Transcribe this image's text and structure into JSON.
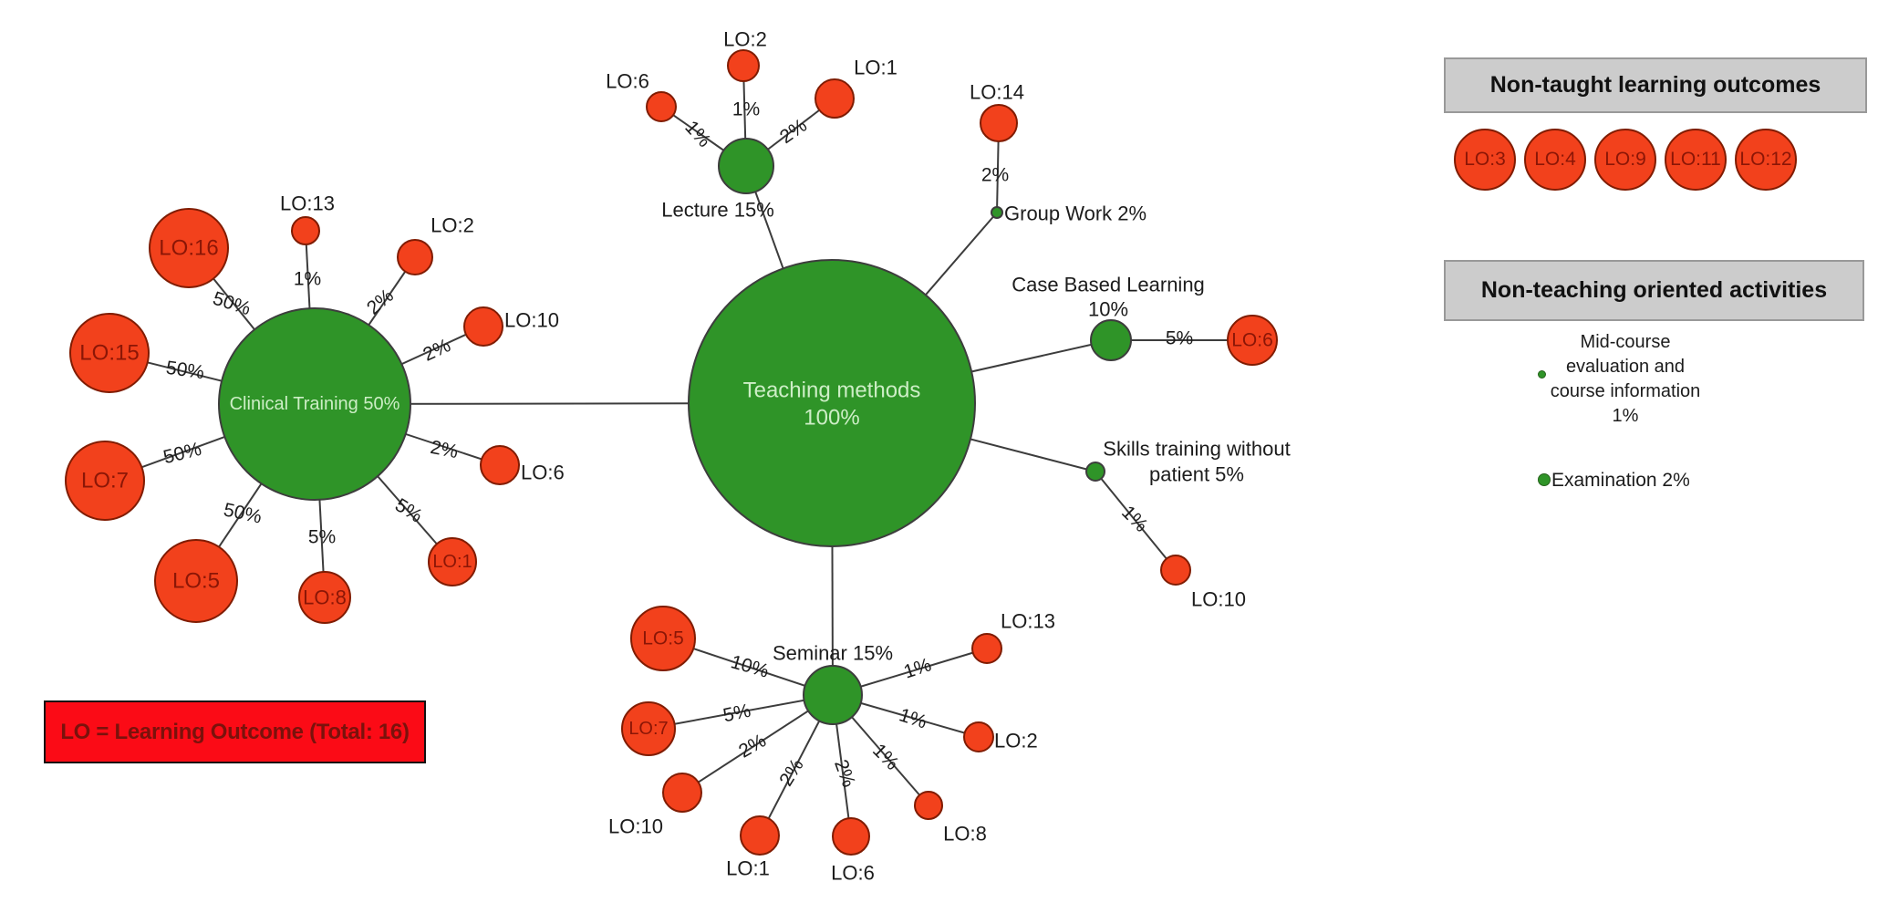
{
  "colors": {
    "green_fill": "#2f9428",
    "green_stroke": "#3d3d3d",
    "red_fill": "#f2411c",
    "red_stroke": "#801c02",
    "red_text": "#8b1606",
    "light_green_text": "#cdeec6",
    "black_text": "#1c1c1c",
    "line": "#3c3c3c",
    "gray_box_bg": "#cccccc",
    "note_box_bg": "#fb0b16",
    "note_box_text": "#7a120c"
  },
  "graph": {
    "nodes": [
      {
        "id": "teaching",
        "kind": "method",
        "lines": [
          "Teaching methods",
          "100%"
        ]
      },
      {
        "id": "clinical",
        "kind": "method",
        "lines": [
          "Clinical Training 50%"
        ]
      },
      {
        "id": "lecture",
        "kind": "method",
        "label": "Lecture 15%"
      },
      {
        "id": "seminar",
        "kind": "method",
        "label": "Seminar 15%"
      },
      {
        "id": "groupwork",
        "kind": "method",
        "label": "Group Work 2%"
      },
      {
        "id": "cbl",
        "kind": "method",
        "lines": [
          "Case Based Learning",
          "10%"
        ]
      },
      {
        "id": "skills",
        "kind": "method",
        "lines": [
          "Skills training without",
          "patient 5%"
        ]
      },
      {
        "id": "lec_lo6",
        "kind": "lo",
        "label": "LO:6"
      },
      {
        "id": "lec_lo2",
        "kind": "lo",
        "label": "LO:2"
      },
      {
        "id": "lec_lo1",
        "kind": "lo",
        "label": "LO:1"
      },
      {
        "id": "lo14",
        "kind": "lo",
        "label": "LO:14"
      },
      {
        "id": "cl_lo16",
        "kind": "lo",
        "label": "LO:16"
      },
      {
        "id": "cl_lo13",
        "kind": "lo",
        "label": "LO:13"
      },
      {
        "id": "cl_lo2",
        "kind": "lo",
        "label": "LO:2"
      },
      {
        "id": "cl_lo15",
        "kind": "lo",
        "label": "LO:15"
      },
      {
        "id": "cl_lo10",
        "kind": "lo",
        "label": "LO:10"
      },
      {
        "id": "cl_lo7",
        "kind": "lo",
        "label": "LO:7"
      },
      {
        "id": "cl_lo6",
        "kind": "lo",
        "label": "LO:6"
      },
      {
        "id": "cl_lo5",
        "kind": "lo",
        "label": "LO:5"
      },
      {
        "id": "cl_lo8",
        "kind": "lo",
        "label": "LO:8"
      },
      {
        "id": "cl_lo1",
        "kind": "lo",
        "label": "LO:1"
      },
      {
        "id": "cbl_lo6",
        "kind": "lo",
        "label": "LO:6"
      },
      {
        "id": "sk_lo10",
        "kind": "lo",
        "label": "LO:10"
      },
      {
        "id": "sem_lo5",
        "kind": "lo",
        "label": "LO:5"
      },
      {
        "id": "sem_lo7",
        "kind": "lo",
        "label": "LO:7"
      },
      {
        "id": "sem_lo10",
        "kind": "lo",
        "label": "LO:10"
      },
      {
        "id": "sem_lo1",
        "kind": "lo",
        "label": "LO:1"
      },
      {
        "id": "sem_lo6",
        "kind": "lo",
        "label": "LO:6"
      },
      {
        "id": "sem_lo8",
        "kind": "lo",
        "label": "LO:8"
      },
      {
        "id": "sem_lo2",
        "kind": "lo",
        "label": "LO:2"
      },
      {
        "id": "sem_lo13",
        "kind": "lo",
        "label": "LO:13"
      }
    ],
    "edges": [
      {
        "from": "teaching",
        "to": "clinical",
        "label": ""
      },
      {
        "from": "teaching",
        "to": "lecture",
        "label": ""
      },
      {
        "from": "teaching",
        "to": "seminar",
        "label": ""
      },
      {
        "from": "teaching",
        "to": "groupwork",
        "label": ""
      },
      {
        "from": "teaching",
        "to": "cbl",
        "label": ""
      },
      {
        "from": "teaching",
        "to": "skills",
        "label": ""
      },
      {
        "from": "lecture",
        "to": "lec_lo6",
        "label": "1%"
      },
      {
        "from": "lecture",
        "to": "lec_lo2",
        "label": "1%"
      },
      {
        "from": "lecture",
        "to": "lec_lo1",
        "label": "2%"
      },
      {
        "from": "groupwork",
        "to": "lo14",
        "label": "2%"
      },
      {
        "from": "cbl",
        "to": "cbl_lo6",
        "label": "5%"
      },
      {
        "from": "skills",
        "to": "sk_lo10",
        "label": "1%"
      },
      {
        "from": "clinical",
        "to": "cl_lo16",
        "label": "50%"
      },
      {
        "from": "clinical",
        "to": "cl_lo13",
        "label": "1%"
      },
      {
        "from": "clinical",
        "to": "cl_lo2",
        "label": "2%"
      },
      {
        "from": "clinical",
        "to": "cl_lo15",
        "label": "50%"
      },
      {
        "from": "clinical",
        "to": "cl_lo10",
        "label": "2%"
      },
      {
        "from": "clinical",
        "to": "cl_lo7",
        "label": "50%"
      },
      {
        "from": "clinical",
        "to": "cl_lo6",
        "label": "2%"
      },
      {
        "from": "clinical",
        "to": "cl_lo5",
        "label": "50%"
      },
      {
        "from": "clinical",
        "to": "cl_lo8",
        "label": "5%"
      },
      {
        "from": "clinical",
        "to": "cl_lo1",
        "label": "5%"
      },
      {
        "from": "seminar",
        "to": "sem_lo5",
        "label": "10%"
      },
      {
        "from": "seminar",
        "to": "sem_lo7",
        "label": "5%"
      },
      {
        "from": "seminar",
        "to": "sem_lo10",
        "label": "2%"
      },
      {
        "from": "seminar",
        "to": "sem_lo1",
        "label": "2%"
      },
      {
        "from": "seminar",
        "to": "sem_lo6",
        "label": "2%"
      },
      {
        "from": "seminar",
        "to": "sem_lo8",
        "label": "1%"
      },
      {
        "from": "seminar",
        "to": "sem_lo2",
        "label": "1%"
      },
      {
        "from": "seminar",
        "to": "sem_lo13",
        "label": "1%"
      }
    ]
  },
  "legend_non_taught": {
    "title": "Non-taught learning outcomes",
    "items": [
      "LO:3",
      "LO:4",
      "LO:9",
      "LO:11",
      "LO:12"
    ]
  },
  "legend_activities": {
    "title": "Non-teaching oriented activities",
    "mid_course_lines": [
      "Mid-course",
      "evaluation and",
      "course information",
      "1%"
    ],
    "examination_label": "Examination 2%"
  },
  "note_box": {
    "label": "LO = Learning Outcome (Total: 16)"
  }
}
